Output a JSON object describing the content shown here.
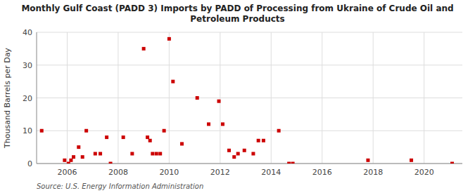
{
  "chart_data": {
    "type": "scatter",
    "title": "Monthly Gulf Coast (PADD 3) Imports by PADD of Processing from Ukraine of Crude Oil and\nPetroleum Products",
    "y_label": "Thousand Barrels per Day",
    "annotations": [
      "Source: U.S. Energy Information Administration"
    ],
    "color": "#cc0000",
    "marker": "square",
    "grid": true,
    "xlim": [
      2004.8,
      2021.5
    ],
    "xticks": [
      2006,
      2008,
      2010,
      2012,
      2014,
      2016,
      2018,
      2020
    ],
    "ylim": [
      0,
      40
    ],
    "yticks": [
      0,
      10,
      20,
      30,
      40
    ],
    "x": [
      2005.0,
      2005.9,
      2006.05,
      2006.15,
      2006.25,
      2006.45,
      2006.6,
      2006.75,
      2007.1,
      2007.3,
      2007.55,
      2007.7,
      2008.2,
      2008.55,
      2009.0,
      2009.15,
      2009.25,
      2009.35,
      2009.5,
      2009.65,
      2009.8,
      2010.0,
      2010.15,
      2010.5,
      2011.1,
      2011.55,
      2011.95,
      2012.1,
      2012.35,
      2012.55,
      2012.7,
      2012.95,
      2013.3,
      2013.5,
      2013.7,
      2014.3,
      2014.7,
      2014.85,
      2017.8,
      2019.5,
      2021.1
    ],
    "values": [
      10,
      1,
      0,
      1,
      2,
      5,
      2,
      10,
      3,
      3,
      8,
      0,
      8,
      3,
      35,
      8,
      7,
      3,
      3,
      3,
      10,
      38,
      25,
      6,
      20,
      12,
      19,
      12,
      4,
      2,
      3,
      4,
      3,
      7,
      7,
      10,
      0,
      0,
      1,
      1,
      0
    ]
  }
}
